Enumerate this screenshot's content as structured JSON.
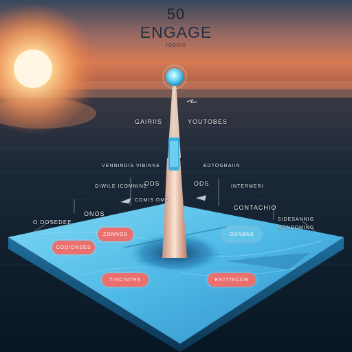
{
  "hero": {
    "number": "50",
    "title": "ENGAGE",
    "subtitle": "rooms"
  },
  "labels": [
    {
      "name": "label-top-left",
      "text": "GAIRIIS"
    },
    {
      "name": "label-top-right",
      "text": "YOUTOBES"
    },
    {
      "name": "label-mid-left",
      "text": "VENNINDIS VIBINNE"
    },
    {
      "name": "label-mid-right",
      "text": "EDTOGRAIIN"
    },
    {
      "name": "label-left-ods",
      "text": "ODS"
    },
    {
      "name": "label-right-ods",
      "text": "ODS"
    },
    {
      "name": "label-left-arrow",
      "text": "GIWILE ICOMNINE"
    },
    {
      "name": "label-right-arrow",
      "text": "INTERMERI"
    },
    {
      "name": "label-far-left",
      "text": "O DOSEDEE"
    },
    {
      "name": "label-left-onos",
      "text": "ONOS"
    },
    {
      "name": "label-right-contachio",
      "text": "CONTACHIO"
    },
    {
      "name": "label-far-right",
      "text": "SIDESANNIG NONDOMING"
    },
    {
      "name": "label-left-ome",
      "text": "COMIS OME"
    }
  ],
  "pills": [
    {
      "name": "pill-top-center",
      "text": "ZONNOS"
    },
    {
      "name": "pill-left",
      "text": "CODIONSES"
    },
    {
      "name": "pill-right-top",
      "text": "OSNBNS"
    },
    {
      "name": "pill-bottom-left",
      "text": "TINCINTES"
    },
    {
      "name": "pill-bottom-right",
      "text": "ESTTISCOR"
    }
  ],
  "colors": {
    "sky_top": "#2a3e55",
    "sun": "#ffe2a8",
    "sea": "#0d2030",
    "platform": "#5ec8ea",
    "pill": "#e9706e",
    "tower": "#f1d6c4",
    "orb": "#7fe3ff"
  }
}
